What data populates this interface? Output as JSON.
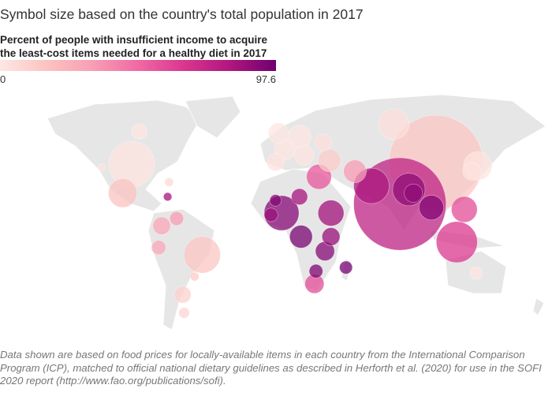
{
  "title": "Symbol size based on the country's total population in 2017",
  "legend": {
    "title_line1": "Percent of people with insufficient income to acquire",
    "title_line2": "the least-cost items needed for a healthy diet in 2017",
    "min": "0",
    "max": "97.6",
    "color_low": "#fde7e3",
    "color_high": "#6e016f"
  },
  "note": "Data shown are based on food prices for locally-available items in each country from the International Comparison Program (ICP), matched to official national dietary guidelines as described in Herforth et al. (2020) for use in the SOFI 2020 report (http://www.fao.org/publications/sofi).",
  "map_data": {
    "type": "bubble-map",
    "size_variable": "population",
    "color_variable": "percent unaffordable",
    "bubbles": [
      {
        "lon": 79,
        "lat": 18,
        "pct": 78,
        "pop": 1339
      },
      {
        "lon": 103,
        "lat": 41,
        "pct": 18,
        "pop": 1386
      },
      {
        "lon": -100,
        "lat": 40,
        "pct": 2,
        "pop": 325
      },
      {
        "lon": -53,
        "lat": -10,
        "pct": 19,
        "pop": 209
      },
      {
        "lon": 117,
        "lat": -3,
        "pct": 68,
        "pop": 264
      },
      {
        "lon": 60,
        "lat": 28,
        "pct": 84,
        "pop": 197
      },
      {
        "lon": 85,
        "lat": 26,
        "pct": 90,
        "pop": 165
      },
      {
        "lon": 0,
        "lat": 13,
        "pct": 92,
        "pop": 191
      },
      {
        "lon": 33,
        "lat": 13,
        "pct": 86,
        "pop": 105
      },
      {
        "lon": 13,
        "lat": 0,
        "pct": 95,
        "pop": 81
      },
      {
        "lon": 75,
        "lat": 62,
        "pct": 5,
        "pop": 145
      },
      {
        "lon": -106,
        "lat": 24,
        "pct": 20,
        "pop": 129
      },
      {
        "lon": 122,
        "lat": 15,
        "pct": 62,
        "pop": 105
      },
      {
        "lon": 100,
        "lat": 16,
        "pct": 93,
        "pop": 95
      },
      {
        "lon": 131,
        "lat": 39,
        "pct": 2,
        "pop": 127
      },
      {
        "lon": 25,
        "lat": 33,
        "pct": 60,
        "pop": 97
      },
      {
        "lon": 49,
        "lat": 36,
        "pct": 40,
        "pop": 81
      },
      {
        "lon": 32,
        "lat": 42,
        "pct": 15,
        "pop": 81
      },
      {
        "lon": 29,
        "lat": -8,
        "pct": 92,
        "pop": 57
      },
      {
        "lon": 33,
        "lat": 0,
        "pct": 88,
        "pop": 50
      },
      {
        "lon": 22,
        "lat": -26,
        "pct": 62,
        "pop": 57
      },
      {
        "lon": 43,
        "lat": -17,
        "pct": 96,
        "pop": 26
      },
      {
        "lon": 23,
        "lat": -19,
        "pct": 94,
        "pop": 29
      },
      {
        "lon": -80,
        "lat": 6,
        "pct": 35,
        "pop": 49
      },
      {
        "lon": -66,
        "lat": -32,
        "pct": 12,
        "pop": 44
      },
      {
        "lon": -95,
        "lat": 58,
        "pct": 1,
        "pop": 37
      },
      {
        "lon": 88,
        "lat": 24,
        "pct": 90,
        "pop": 53
      },
      {
        "lon": -82,
        "lat": -6,
        "pct": 35,
        "pop": 32
      },
      {
        "lon": -70,
        "lat": 10,
        "pct": 40,
        "pop": 30
      },
      {
        "lon": 12,
        "lat": 22,
        "pct": 85,
        "pop": 41
      },
      {
        "lon": -4,
        "lat": 20,
        "pct": 93,
        "pop": 21
      },
      {
        "lon": -7,
        "lat": 12,
        "pct": 88,
        "pop": 29
      },
      {
        "lon": -76,
        "lat": 22,
        "pct": 85,
        "pop": 11
      },
      {
        "lon": 12,
        "lat": 55,
        "pct": 1,
        "pop": 82
      },
      {
        "lon": 2,
        "lat": 48,
        "pct": 1,
        "pop": 67
      },
      {
        "lon": -2,
        "lat": 57,
        "pct": 1,
        "pop": 66
      },
      {
        "lon": 15,
        "lat": 45,
        "pct": 2,
        "pop": 60
      },
      {
        "lon": -4,
        "lat": 41,
        "pct": 3,
        "pop": 47
      },
      {
        "lon": 28,
        "lat": 52,
        "pct": 5,
        "pop": 45
      },
      {
        "lon": 127,
        "lat": 36,
        "pct": 3,
        "pop": 51
      },
      {
        "lon": 130,
        "lat": -20,
        "pct": 1,
        "pop": 25
      },
      {
        "lon": -58,
        "lat": -22,
        "pct": 15,
        "pop": 12
      },
      {
        "lon": -65,
        "lat": -42,
        "pct": 10,
        "pop": 18
      },
      {
        "lon": -120,
        "lat": 38,
        "pct": 3,
        "pop": 8
      },
      {
        "lon": -75,
        "lat": 30,
        "pct": 8,
        "pop": 12
      }
    ]
  }
}
